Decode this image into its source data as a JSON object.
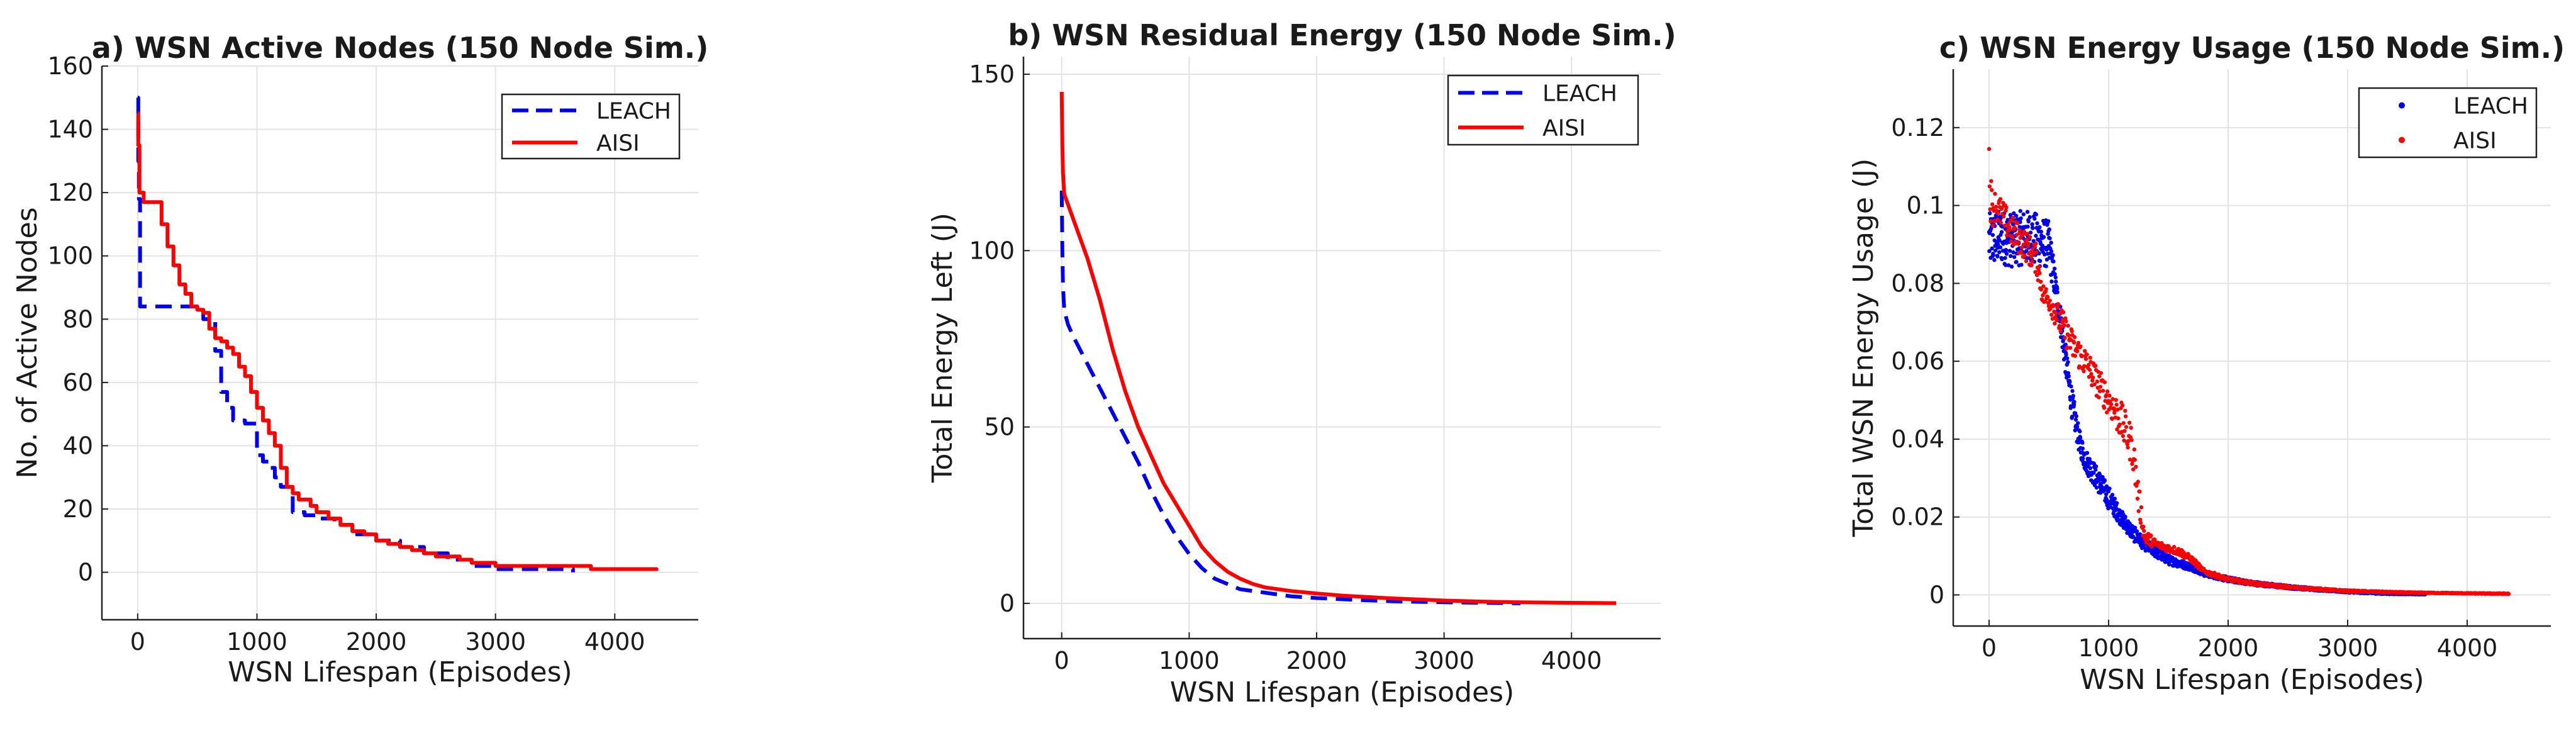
{
  "chart_data": [
    {
      "type": "line",
      "title": "a) WSN Active Nodes (150 Node Sim.)",
      "xlabel": "WSN Lifespan (Episodes)",
      "ylabel": "No. of Active Nodes",
      "xlim": [
        -300,
        4700
      ],
      "ylim": [
        -15,
        160
      ],
      "xticks": [
        0,
        1000,
        2000,
        3000,
        4000
      ],
      "yticks": [
        0,
        20,
        40,
        60,
        80,
        100,
        120,
        140,
        160
      ],
      "grid": true,
      "legend_position": "top-right",
      "series": [
        {
          "name": "LEACH",
          "color": "#0000ee",
          "style": "dashed",
          "step": true,
          "x": [
            0,
            5,
            10,
            20,
            500,
            550,
            650,
            700,
            750,
            800,
            900,
            1000,
            1050,
            1100,
            1150,
            1200,
            1300,
            1400,
            1500,
            1650,
            1800,
            2000,
            2200,
            2400,
            2600,
            2800,
            3000,
            3200,
            3400,
            3650
          ],
          "y": [
            150,
            130,
            118,
            84,
            84,
            80,
            70,
            57,
            52,
            48,
            47,
            37,
            35,
            33,
            30,
            27,
            19,
            18,
            17,
            15,
            12,
            10,
            8,
            6,
            4,
            2,
            1,
            1,
            1,
            0
          ]
        },
        {
          "name": "AISI",
          "color": "#ff0000",
          "style": "solid",
          "step": true,
          "x": [
            0,
            5,
            15,
            50,
            150,
            200,
            250,
            300,
            350,
            400,
            450,
            500,
            550,
            600,
            650,
            700,
            750,
            800,
            850,
            900,
            950,
            1000,
            1050,
            1100,
            1150,
            1200,
            1250,
            1300,
            1350,
            1400,
            1450,
            1500,
            1600,
            1700,
            1800,
            1900,
            2000,
            2100,
            2200,
            2300,
            2400,
            2500,
            2600,
            2700,
            2800,
            3000,
            3200,
            3400,
            3600,
            3800,
            4000,
            4200,
            4350
          ],
          "y": [
            145,
            135,
            120,
            117,
            117,
            110,
            103,
            97,
            91,
            88,
            84,
            83,
            82,
            77,
            74,
            73,
            71,
            69,
            65,
            62,
            57,
            52,
            48,
            44,
            40,
            33,
            27,
            25,
            23,
            23,
            21,
            19,
            17,
            15,
            13,
            12,
            10,
            9,
            8,
            7,
            6,
            5,
            5,
            4,
            3,
            2,
            2,
            2,
            2,
            1,
            1,
            1,
            0.5
          ]
        }
      ]
    },
    {
      "type": "line",
      "title": "b) WSN Residual Energy (150 Node Sim.)",
      "xlabel": "WSN Lifespan (Episodes)",
      "ylabel": "Total Energy Left (J)",
      "xlim": [
        -300,
        4700
      ],
      "ylim": [
        -10,
        155
      ],
      "xticks": [
        0,
        1000,
        2000,
        3000,
        4000
      ],
      "yticks": [
        0,
        50,
        100,
        150
      ],
      "grid": true,
      "legend_position": "top-right",
      "series": [
        {
          "name": "LEACH",
          "color": "#0000ee",
          "style": "dashed",
          "x": [
            0,
            5,
            10,
            20,
            50,
            100,
            200,
            300,
            400,
            500,
            600,
            700,
            800,
            900,
            1000,
            1100,
            1200,
            1400,
            1600,
            1800,
            2000,
            2300,
            2600,
            3000,
            3300,
            3600
          ],
          "y": [
            117,
            100,
            90,
            83,
            79,
            75,
            68,
            61,
            54,
            47,
            40,
            32,
            25,
            19,
            14,
            10,
            7,
            4,
            3,
            2,
            1.5,
            1,
            0.6,
            0.3,
            0.15,
            0
          ]
        },
        {
          "name": "AISI",
          "color": "#ff0000",
          "style": "solid",
          "x": [
            0,
            5,
            10,
            20,
            50,
            100,
            200,
            300,
            400,
            500,
            600,
            700,
            800,
            900,
            1000,
            1100,
            1200,
            1300,
            1400,
            1500,
            1600,
            1800,
            2000,
            2200,
            2400,
            2600,
            2800,
            3000,
            3300,
            3600,
            3900,
            4200,
            4350
          ],
          "y": [
            145,
            130,
            122,
            116,
            113,
            108,
            98,
            86,
            72,
            60,
            50,
            42,
            34,
            28,
            22,
            16,
            12,
            9,
            7,
            5.5,
            4.5,
            3.5,
            2.8,
            2.2,
            1.8,
            1.4,
            1.1,
            0.8,
            0.5,
            0.3,
            0.2,
            0.1,
            0.05
          ]
        }
      ]
    },
    {
      "type": "scatter",
      "title": "c) WSN Energy Usage (150 Node Sim.)",
      "xlabel": "WSN Lifespan (Episodes)",
      "ylabel": "Total WSN Energy Usage (J)",
      "xlim": [
        -300,
        4700
      ],
      "ylim": [
        -0.008,
        0.135
      ],
      "xticks": [
        0,
        1000,
        2000,
        3000,
        4000
      ],
      "yticks": [
        0,
        0.02,
        0.04,
        0.06,
        0.08,
        0.1,
        0.12
      ],
      "grid": true,
      "legend_position": "top-right",
      "series": [
        {
          "name": "LEACH",
          "color": "#0000ee",
          "marker": "dot",
          "envelope": {
            "x": [
              0,
              100,
              200,
              300,
              400,
              500,
              550,
              600,
              650,
              700,
              750,
              800,
              900,
              1000,
              1100,
              1200,
              1300,
              1400,
              1500,
              1600,
              1700,
              1800,
              2000,
              2200,
              2500,
              2800,
              3000,
              3300,
              3650
            ],
            "y": [
              0.091,
              0.092,
              0.091,
              0.092,
              0.091,
              0.09,
              0.08,
              0.07,
              0.058,
              0.048,
              0.04,
              0.035,
              0.03,
              0.025,
              0.02,
              0.016,
              0.013,
              0.011,
              0.009,
              0.008,
              0.007,
              0.0055,
              0.004,
              0.003,
              0.002,
              0.0013,
              0.0008,
              0.0004,
              0.0002
            ],
            "spread": [
              0.007,
              0.007,
              0.007,
              0.007,
              0.007,
              0.006,
              0.004,
              0.004,
              0.004,
              0.004,
              0.003,
              0.003,
              0.003,
              0.003,
              0.002,
              0.002,
              0.0015,
              0.0015,
              0.0012,
              0.001,
              0.0008,
              0.0007,
              0.0006,
              0.0005,
              0.0004,
              0.0003,
              0.0002,
              0.0002,
              0.0001
            ]
          }
        },
        {
          "name": "AISI",
          "color": "#ff0000",
          "marker": "dot",
          "envelope": {
            "x": [
              0,
              20,
              50,
              100,
              200,
              300,
              400,
              450,
              500,
              600,
              700,
              800,
              900,
              1000,
              1100,
              1200,
              1250,
              1300,
              1400,
              1500,
              1600,
              1700,
              1800,
              2000,
              2200,
              2500,
              3000,
              3500,
              4000,
              4350
            ],
            "y": [
              0.11,
              0.1,
              0.1,
              0.098,
              0.093,
              0.09,
              0.086,
              0.077,
              0.076,
              0.07,
              0.064,
              0.06,
              0.055,
              0.05,
              0.045,
              0.038,
              0.025,
              0.015,
              0.013,
              0.012,
              0.011,
              0.009,
              0.006,
              0.004,
              0.003,
              0.002,
              0.001,
              0.0006,
              0.0004,
              0.0003
            ],
            "spread": [
              0.01,
              0.006,
              0.004,
              0.004,
              0.004,
              0.004,
              0.004,
              0.003,
              0.003,
              0.004,
              0.004,
              0.004,
              0.004,
              0.004,
              0.005,
              0.005,
              0.004,
              0.002,
              0.001,
              0.001,
              0.001,
              0.0008,
              0.0006,
              0.0005,
              0.0004,
              0.0003,
              0.0002,
              0.0001,
              0.0001,
              0.0001
            ]
          }
        }
      ]
    }
  ]
}
